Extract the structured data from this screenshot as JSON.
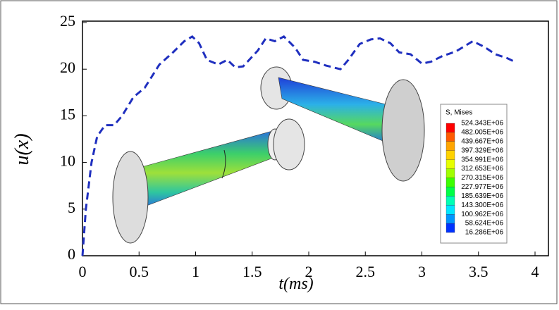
{
  "chart_data": {
    "type": "line",
    "xlabel": "t(ms)",
    "ylabel": "u(x)",
    "x": [
      0,
      0.03,
      0.08,
      0.13,
      0.2,
      0.28,
      0.35,
      0.45,
      0.55,
      0.68,
      0.8,
      0.9,
      0.97,
      1.03,
      1.1,
      1.2,
      1.28,
      1.35,
      1.42,
      1.55,
      1.62,
      1.7,
      1.78,
      1.88,
      1.95,
      2.05,
      2.15,
      2.28,
      2.35,
      2.45,
      2.55,
      2.63,
      2.72,
      2.8,
      2.9,
      3.0,
      3.08,
      3.18,
      3.3,
      3.45,
      3.55,
      3.65,
      3.75,
      3.82
    ],
    "series": [
      {
        "color": "#1f2fbf",
        "values": [
          0,
          5,
          10,
          12.8,
          14,
          14,
          15,
          17,
          18,
          20.5,
          21.8,
          23,
          23.5,
          22.8,
          21,
          20.5,
          21,
          20.2,
          20.3,
          22,
          23.3,
          23,
          23.5,
          22.3,
          21,
          20.8,
          20.4,
          20,
          21,
          22.7,
          23.2,
          23.3,
          22.8,
          21.8,
          21.6,
          20.6,
          20.8,
          21.4,
          21.9,
          23,
          22.4,
          21.6,
          21.2,
          20.8
        ]
      }
    ],
    "xlim": [
      0,
      4
    ],
    "xticks": [
      0,
      0.5,
      1,
      1.5,
      2,
      2.5,
      3,
      3.5,
      4
    ],
    "ylim": [
      0,
      25
    ],
    "yticks": [
      0,
      5,
      10,
      15,
      20,
      25
    ],
    "colorbar": {
      "title": "S, Mises",
      "labels": [
        "524.343E+06",
        "482.005E+06",
        "439.667E+06",
        "397.329E+06",
        "354.991E+06",
        "312.653E+06",
        "270.315E+06",
        "227.977E+06",
        "185.639E+06",
        "143.300E+06",
        "100.962E+06",
        "58.624E+06",
        "16.286E+06"
      ],
      "colors": [
        "#ff0000",
        "#ff5a00",
        "#ffa500",
        "#ffd200",
        "#e6ff00",
        "#a0ff00",
        "#3cff00",
        "#00ff46",
        "#00ffb4",
        "#00e6ff",
        "#0096ff",
        "#0032ff"
      ]
    }
  }
}
